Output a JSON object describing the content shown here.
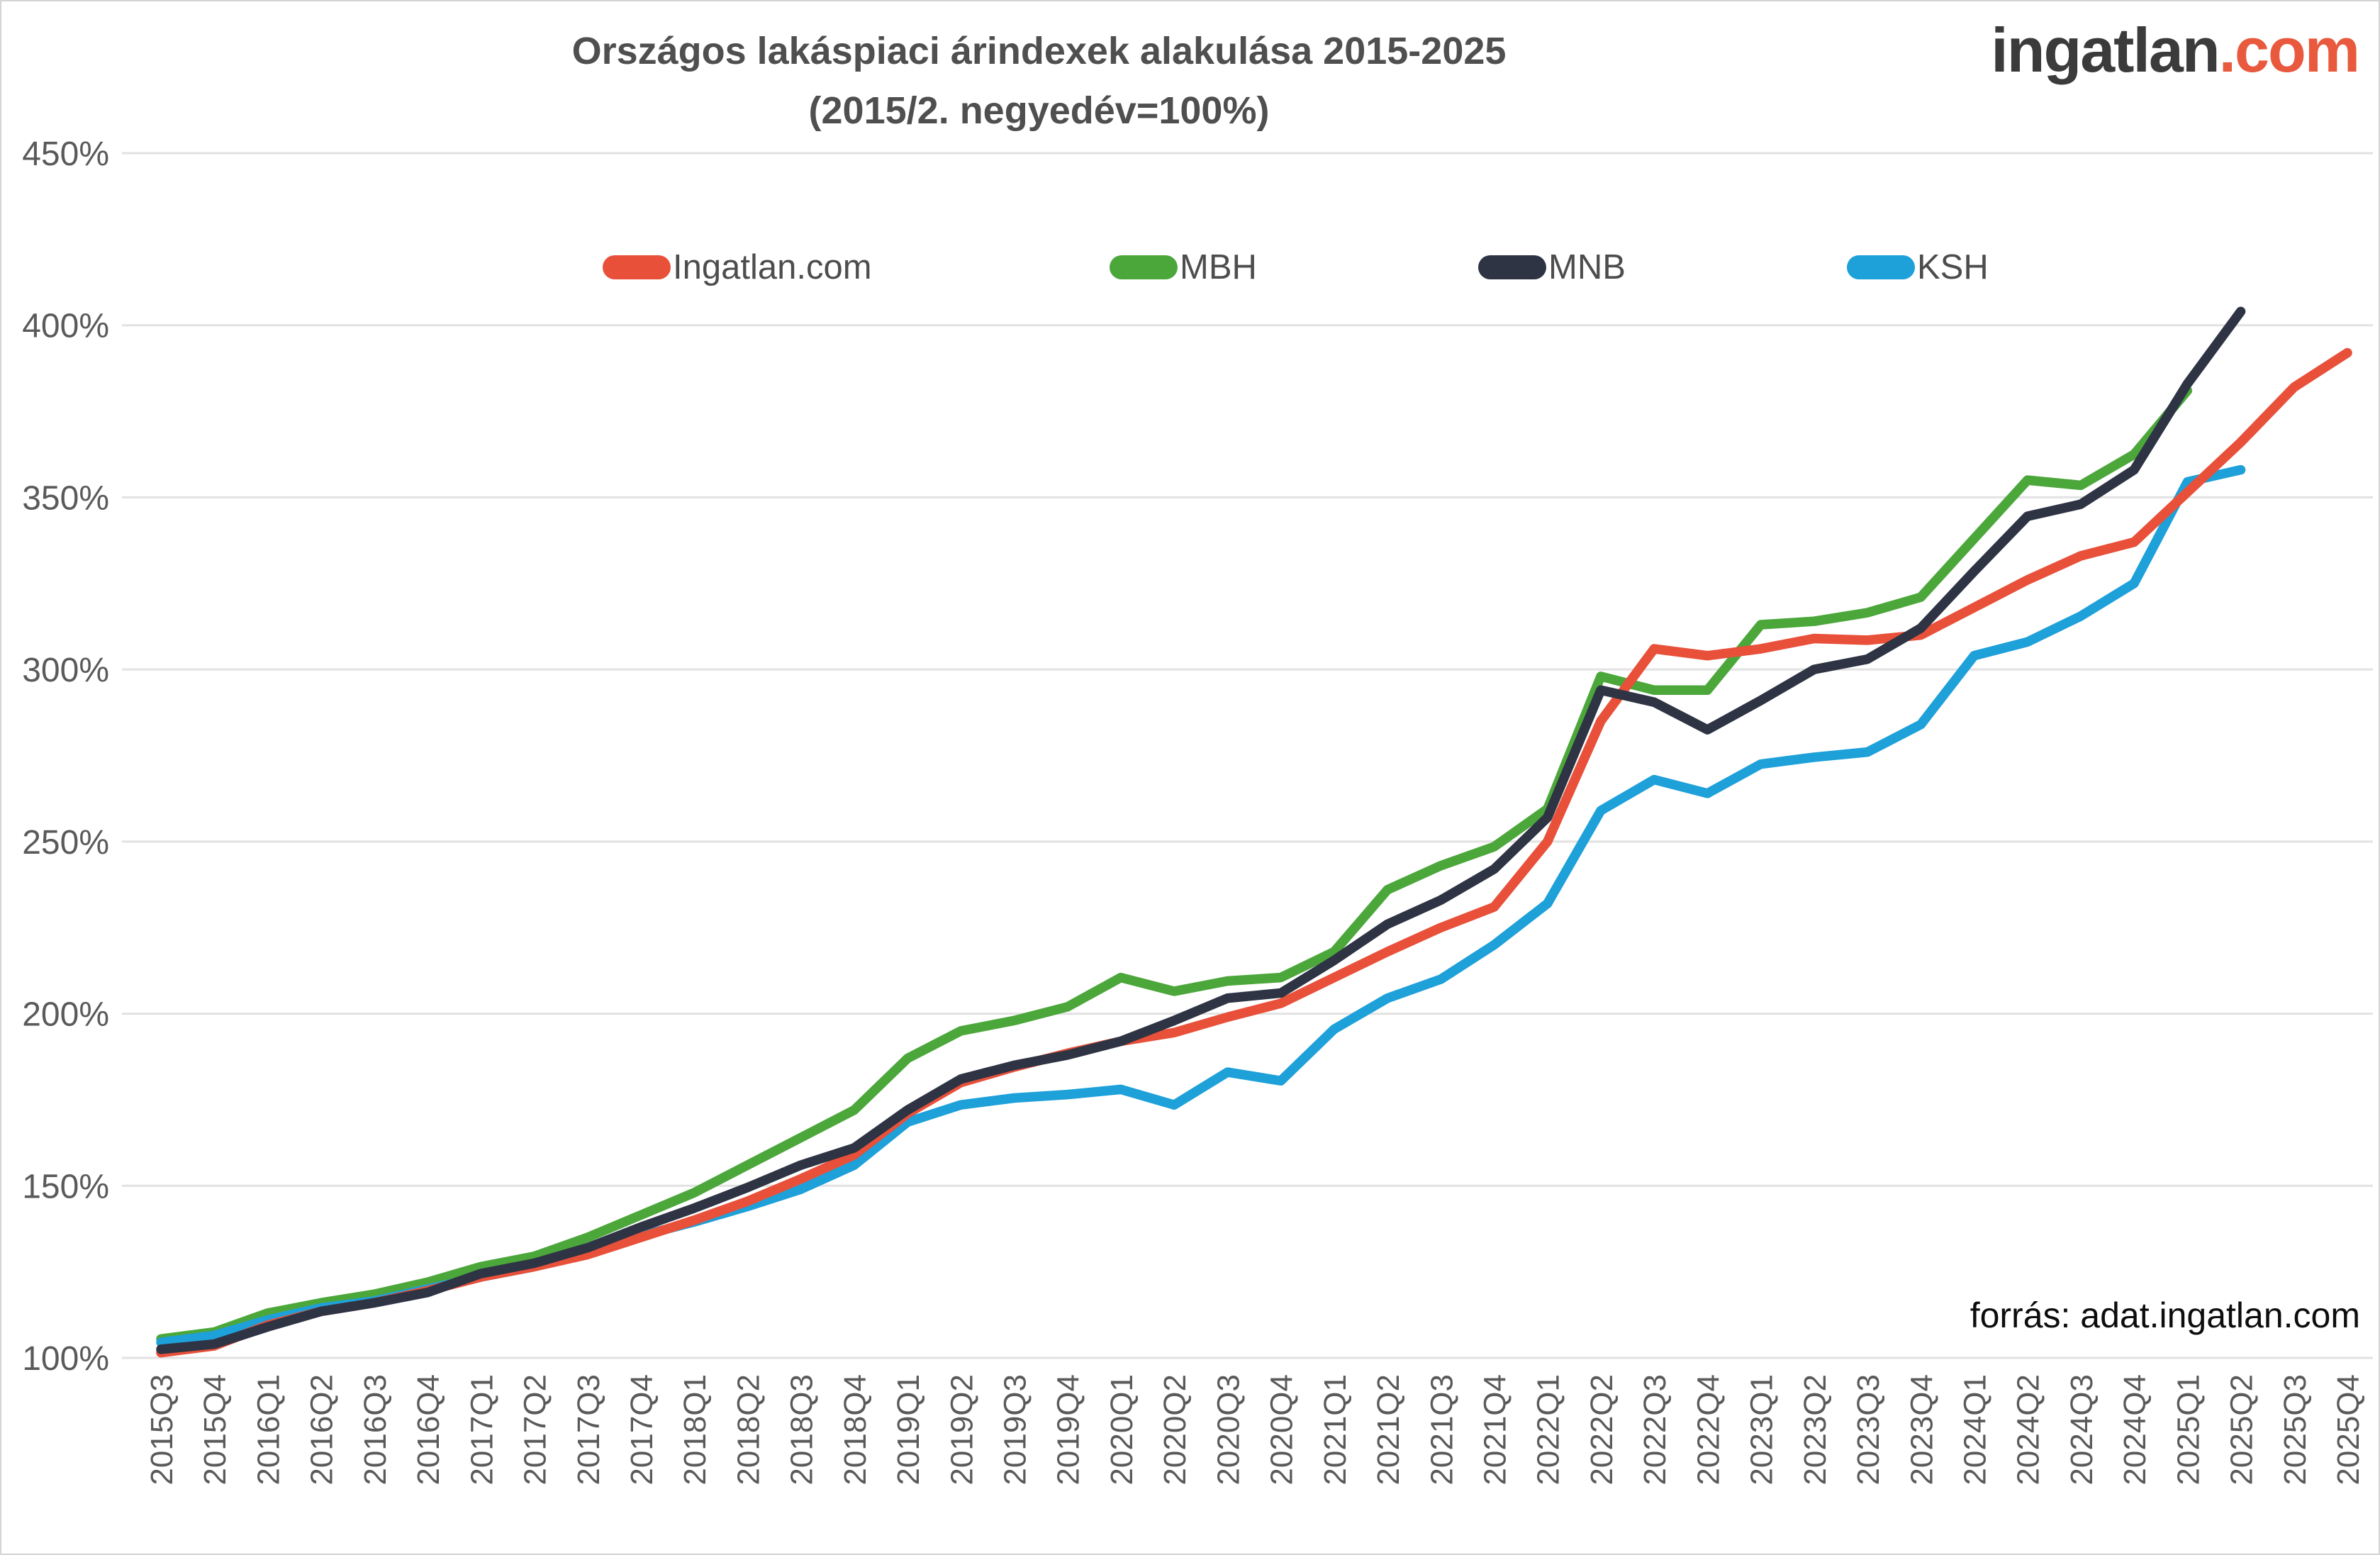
{
  "header": {
    "title_line1": "Országos lakáspiaci árindexek alakulása 2015-2025",
    "title_line2": "(2015/2. negyedév=100%)",
    "logo_main": "ingatlan",
    "logo_accent": ".com"
  },
  "footer": {
    "source": "forrás: adat.ingatlan.com"
  },
  "chart_data": {
    "type": "line",
    "title": "Országos lakáspiaci árindexek alakulása 2015-2025 (2015/2. negyedév=100%)",
    "xlabel": "",
    "ylabel": "",
    "ylim": [
      100,
      450
    ],
    "yticks": [
      100,
      150,
      200,
      250,
      300,
      350,
      400,
      450
    ],
    "ytick_labels": [
      "100%",
      "150%",
      "200%",
      "250%",
      "300%",
      "350%",
      "400%",
      "450%"
    ],
    "grid": "horizontal",
    "legend_position": "top",
    "categories": [
      "2015Q3",
      "2015Q4",
      "2016Q1",
      "2016Q2",
      "2016Q3",
      "2016Q4",
      "2017Q1",
      "2017Q2",
      "2017Q3",
      "2017Q4",
      "2018Q1",
      "2018Q2",
      "2018Q3",
      "2018Q4",
      "2019Q1",
      "2019Q2",
      "2019Q3",
      "2019Q4",
      "2020Q1",
      "2020Q2",
      "2020Q3",
      "2020Q4",
      "2021Q1",
      "2021Q2",
      "2021Q3",
      "2021Q4",
      "2022Q1",
      "2022Q2",
      "2022Q3",
      "2022Q4",
      "2023Q1",
      "2023Q2",
      "2023Q3",
      "2023Q4",
      "2024Q1",
      "2024Q2",
      "2024Q3",
      "2024Q4",
      "2025Q1",
      "2025Q2",
      "2025Q3",
      "2025Q4"
    ],
    "series": [
      {
        "name": "Ingatlan.com",
        "color": "#e8503a",
        "values": [
          101.5,
          103.5,
          109.5,
          113.5,
          116,
          119.5,
          123.5,
          126.5,
          130,
          135,
          140,
          145.5,
          152,
          159,
          171,
          180,
          184.5,
          188.5,
          192,
          194.5,
          199,
          203,
          210.5,
          218,
          225,
          231,
          250,
          285,
          306,
          304,
          306,
          309,
          308.5,
          310,
          318,
          326,
          333,
          337,
          351.5,
          366,
          382,
          392
        ]
      },
      {
        "name": "MBH",
        "color": "#4ca73b",
        "values": [
          105.5,
          107.5,
          113,
          116,
          118.5,
          122,
          126.5,
          129.5,
          135,
          141.5,
          148,
          156,
          164,
          172,
          187,
          195,
          198,
          202,
          210.5,
          206.5,
          209.5,
          210.5,
          218,
          236,
          243,
          248.5,
          259.5,
          298,
          294,
          294,
          313,
          314,
          316.5,
          321,
          338,
          355,
          353.5,
          362.5,
          381
        ]
      },
      {
        "name": "MNB",
        "color": "#2e3444",
        "values": [
          102.5,
          104,
          109,
          113.5,
          116,
          119,
          124.5,
          127.5,
          132,
          138,
          143.5,
          149.5,
          156,
          161,
          172,
          181,
          185,
          188,
          192,
          198,
          204.5,
          206,
          215.5,
          226,
          233,
          242,
          257,
          294,
          290.5,
          282.5,
          291,
          300,
          303,
          312,
          328.5,
          344.5,
          348,
          358,
          383,
          404
        ]
      },
      {
        "name": "KSH",
        "color": "#1ea0d9",
        "values": [
          104.5,
          106.5,
          111,
          114.5,
          116.5,
          120,
          123.5,
          126.5,
          130.5,
          135.5,
          139.5,
          144,
          149,
          156,
          168.5,
          173.5,
          175.5,
          176.5,
          178,
          173.5,
          183,
          180.5,
          195.5,
          204.5,
          210,
          220,
          232,
          259,
          268,
          264,
          272.5,
          274.5,
          276,
          284,
          304,
          308,
          315.5,
          325,
          354.5,
          358
        ]
      }
    ]
  }
}
